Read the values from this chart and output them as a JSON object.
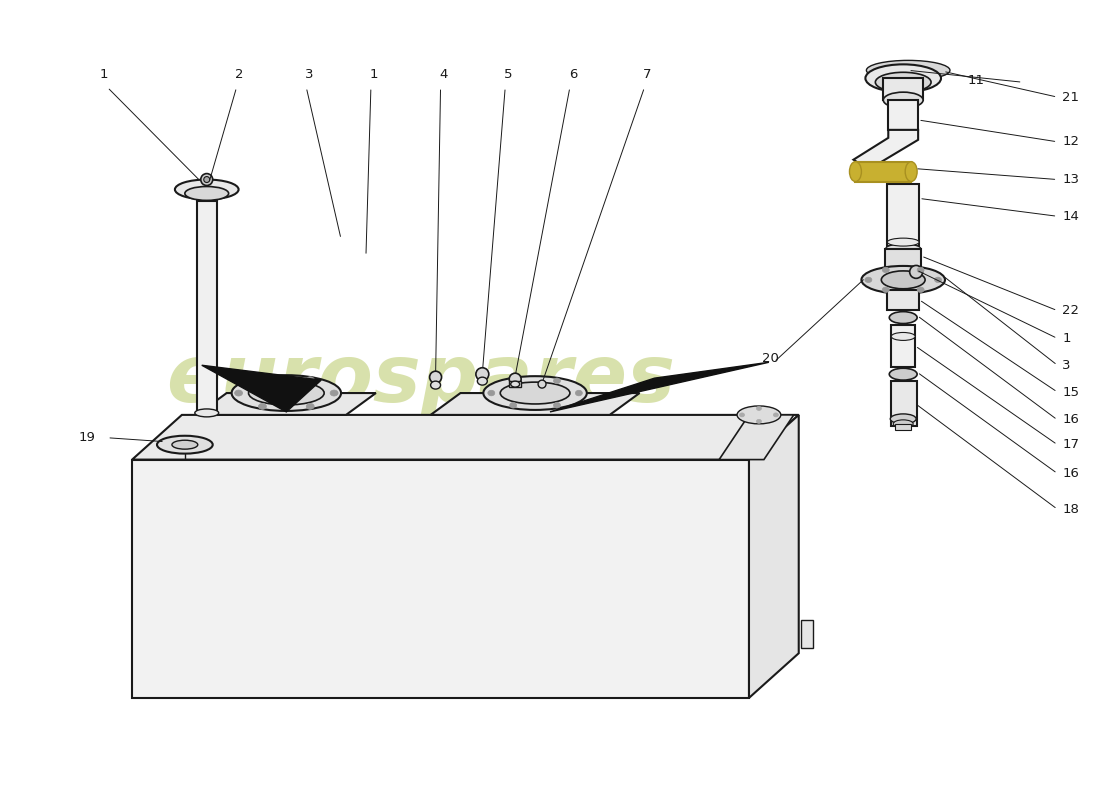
{
  "background_color": "#ffffff",
  "line_color": "#1a1a1a",
  "wm_color": "#ccd890",
  "fig_width": 11.0,
  "fig_height": 8.0,
  "dpi": 100
}
